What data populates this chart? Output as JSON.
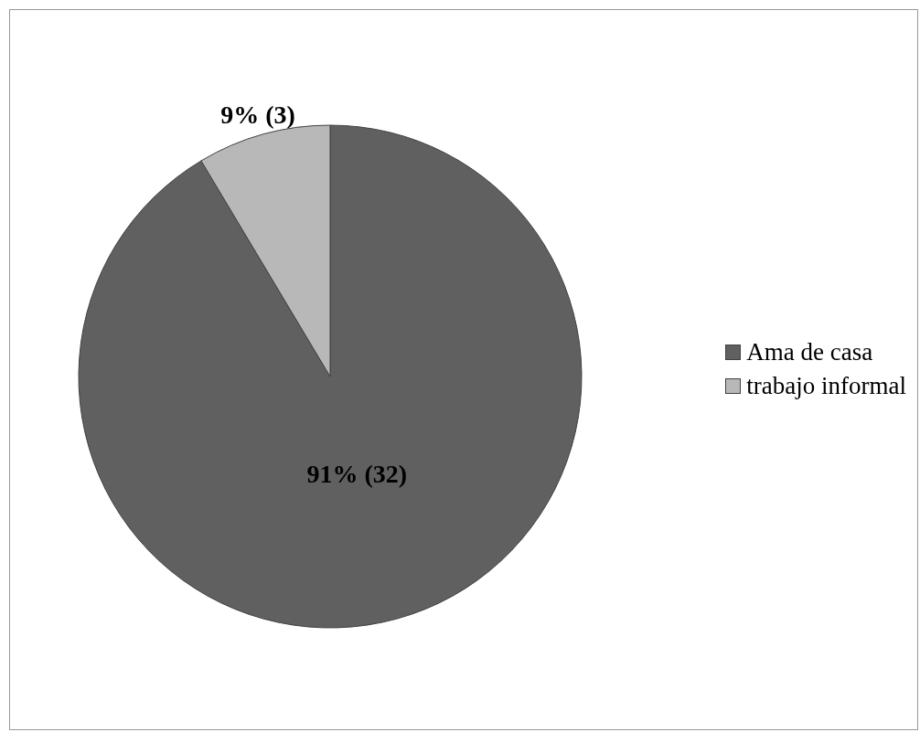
{
  "chart_data": {
    "type": "pie",
    "categories": [
      "Ama de casa",
      "trabajo informal"
    ],
    "values": [
      32,
      3
    ],
    "colors": [
      "#606060",
      "#b8b8b8"
    ],
    "value_labels": [
      "91% (32)",
      "9% (3)"
    ],
    "legend": "right"
  }
}
